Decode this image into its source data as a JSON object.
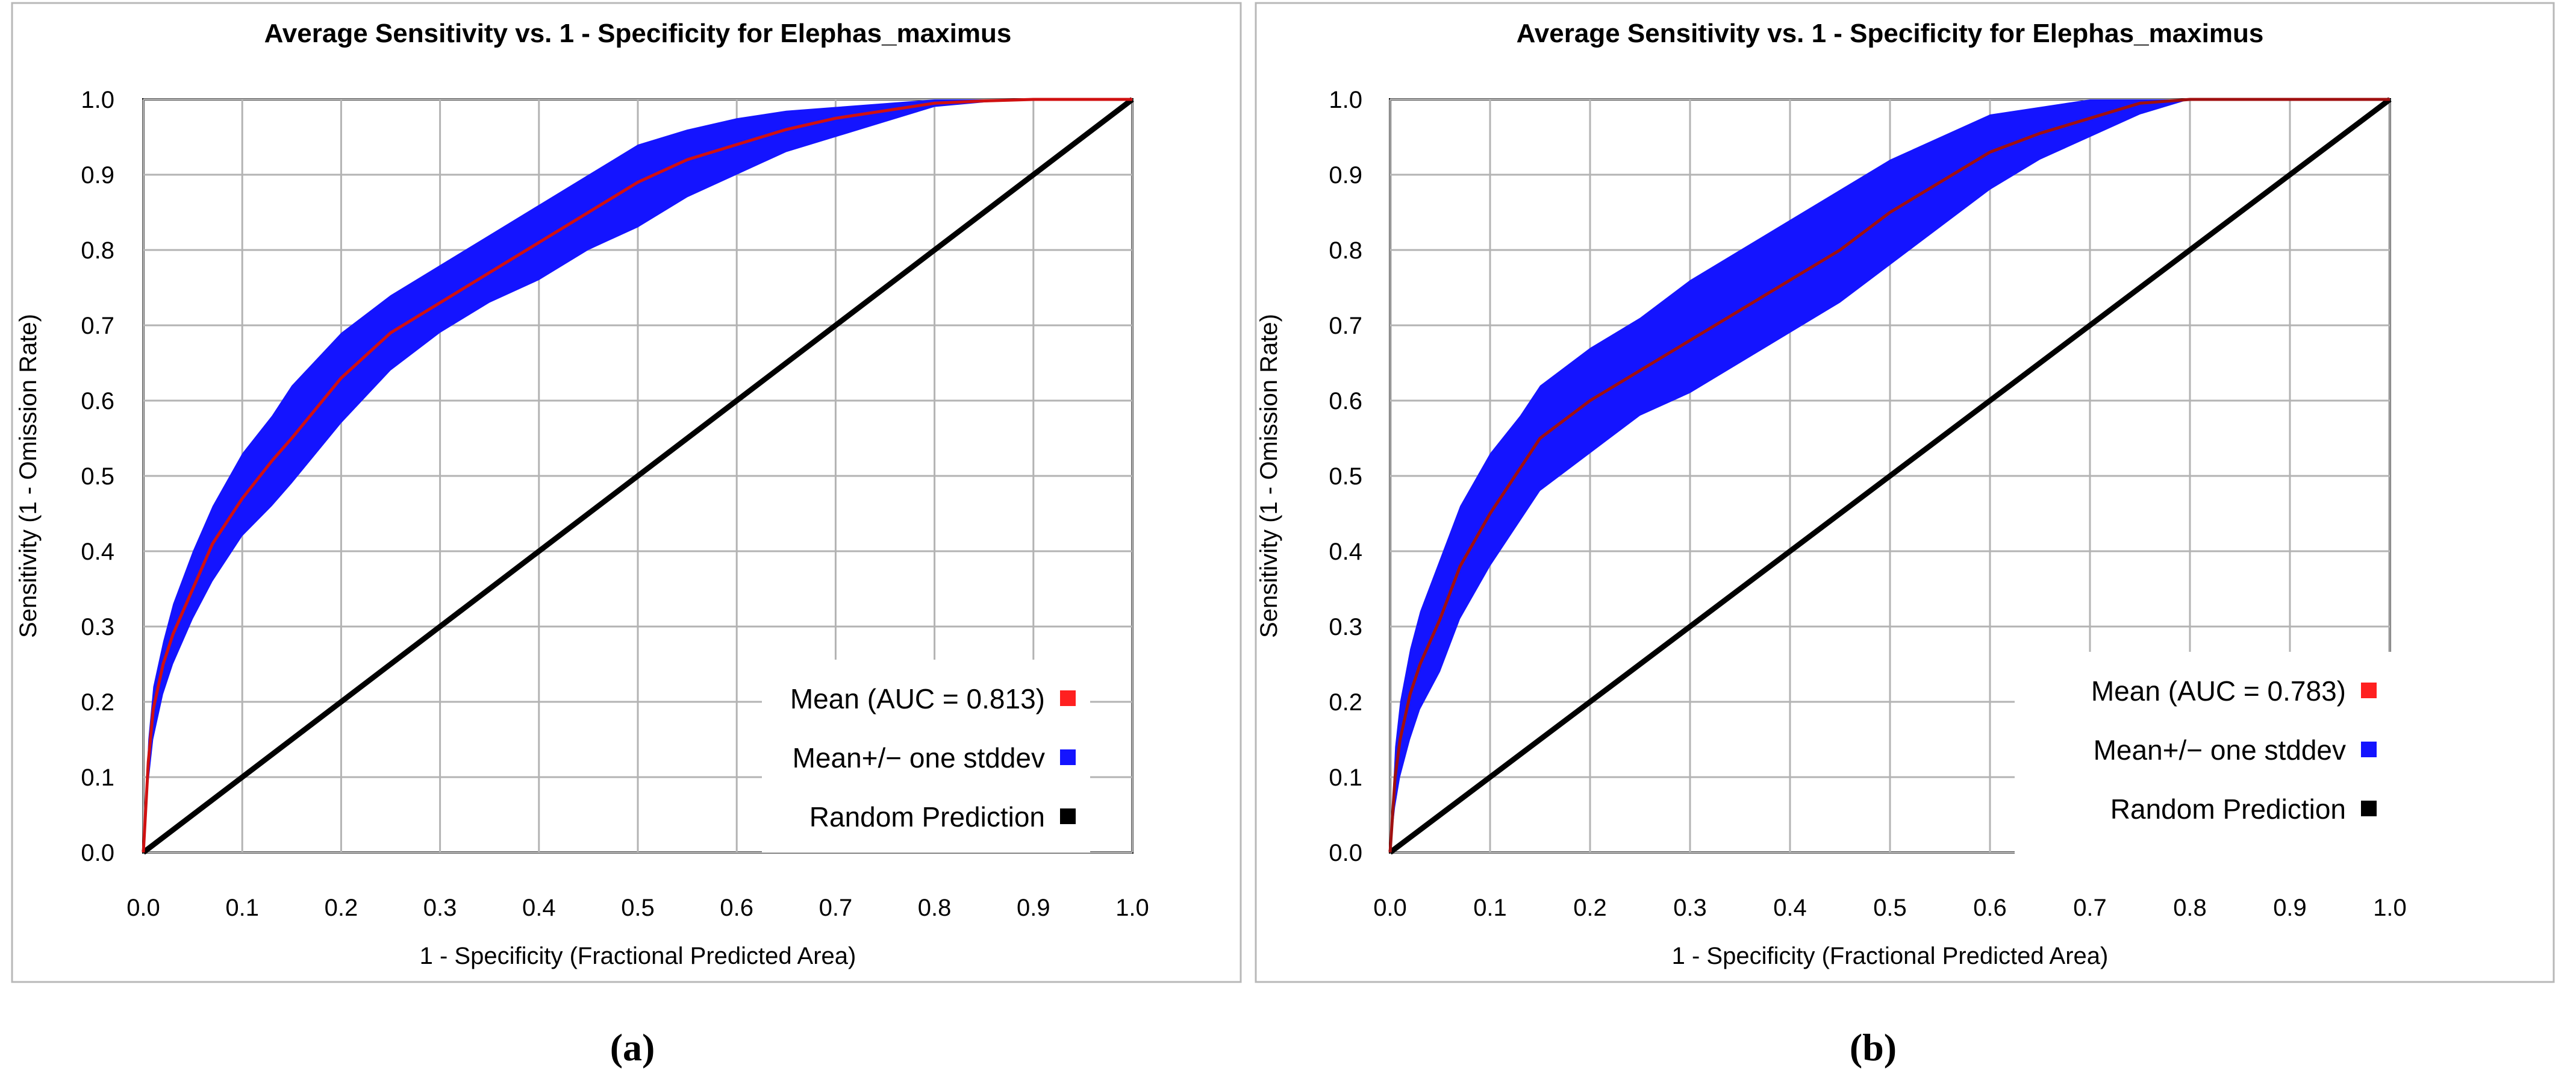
{
  "chart_data": [
    {
      "type": "line",
      "panel_label": "(a)",
      "title": "Average Sensitivity vs. 1 - Specificity for Elephas_maximus",
      "xlabel": "1 - Specificity (Fractional Predicted Area)",
      "ylabel": "Sensitivity (1 - Omission Rate)",
      "xlim": [
        0.0,
        1.0
      ],
      "ylim": [
        0.0,
        1.0
      ],
      "xticks": [
        "0.0",
        "0.1",
        "0.2",
        "0.3",
        "0.4",
        "0.5",
        "0.6",
        "0.7",
        "0.8",
        "0.9",
        "1.0"
      ],
      "yticks": [
        "0.0",
        "0.1",
        "0.2",
        "0.3",
        "0.4",
        "0.5",
        "0.6",
        "0.7",
        "0.8",
        "0.9",
        "1.0"
      ],
      "grid": true,
      "legend_position": "bottom-right",
      "legend": [
        {
          "label": "Mean (AUC = 0.813)",
          "color": "#ff2020"
        },
        {
          "label": "Mean+/− one stddev",
          "color": "#1414ff"
        },
        {
          "label": "Random Prediction",
          "color": "#000000"
        }
      ],
      "series": [
        {
          "name": "Mean",
          "color": "#d01010",
          "x": [
            0.0,
            0.005,
            0.01,
            0.02,
            0.03,
            0.05,
            0.07,
            0.1,
            0.13,
            0.15,
            0.2,
            0.25,
            0.3,
            0.35,
            0.4,
            0.45,
            0.5,
            0.55,
            0.6,
            0.65,
            0.7,
            0.75,
            0.8,
            0.85,
            0.9,
            0.95,
            1.0
          ],
          "y": [
            0.0,
            0.12,
            0.19,
            0.25,
            0.29,
            0.35,
            0.41,
            0.47,
            0.52,
            0.55,
            0.63,
            0.69,
            0.73,
            0.77,
            0.81,
            0.85,
            0.89,
            0.92,
            0.94,
            0.96,
            0.975,
            0.985,
            0.995,
            0.998,
            1.0,
            1.0,
            1.0
          ]
        },
        {
          "name": "Mean+/− one stddev",
          "color": "#1414ff",
          "x": [
            0.0,
            0.005,
            0.01,
            0.02,
            0.03,
            0.05,
            0.07,
            0.1,
            0.13,
            0.15,
            0.2,
            0.25,
            0.3,
            0.35,
            0.4,
            0.45,
            0.5,
            0.55,
            0.6,
            0.65,
            0.7,
            0.75,
            0.8,
            0.85,
            0.9,
            0.95,
            1.0
          ],
          "upper": [
            0.0,
            0.15,
            0.22,
            0.28,
            0.33,
            0.4,
            0.46,
            0.53,
            0.58,
            0.62,
            0.69,
            0.74,
            0.78,
            0.82,
            0.86,
            0.9,
            0.94,
            0.96,
            0.975,
            0.985,
            0.99,
            0.995,
            1.0,
            1.0,
            1.0,
            1.0,
            1.0
          ],
          "lower": [
            0.0,
            0.09,
            0.15,
            0.21,
            0.25,
            0.31,
            0.36,
            0.42,
            0.46,
            0.49,
            0.57,
            0.64,
            0.69,
            0.73,
            0.76,
            0.8,
            0.83,
            0.87,
            0.9,
            0.93,
            0.95,
            0.97,
            0.99,
            0.996,
            1.0,
            1.0,
            1.0
          ]
        },
        {
          "name": "Random Prediction",
          "color": "#000000",
          "x": [
            0.0,
            1.0
          ],
          "y": [
            0.0,
            1.0
          ]
        }
      ]
    },
    {
      "type": "line",
      "panel_label": "(b)",
      "title": "Average Sensitivity vs. 1 - Specificity for Elephas_maximus",
      "xlabel": "1 - Specificity (Fractional Predicted Area)",
      "ylabel": "Sensitivity (1 - Omission Rate)",
      "xlim": [
        0.0,
        1.0
      ],
      "ylim": [
        0.0,
        1.0
      ],
      "xticks": [
        "0.0",
        "0.1",
        "0.2",
        "0.3",
        "0.4",
        "0.5",
        "0.6",
        "0.7",
        "0.8",
        "0.9",
        "1.0"
      ],
      "yticks": [
        "0.0",
        "0.1",
        "0.2",
        "0.3",
        "0.4",
        "0.5",
        "0.6",
        "0.7",
        "0.8",
        "0.9",
        "1.0"
      ],
      "grid": true,
      "legend_position": "bottom-right",
      "legend": [
        {
          "label": "Mean (AUC = 0.783)",
          "color": "#ff2020"
        },
        {
          "label": "Mean+/− one stddev",
          "color": "#1414ff"
        },
        {
          "label": "Random Prediction",
          "color": "#000000"
        }
      ],
      "series": [
        {
          "name": "Mean",
          "color": "#a01010",
          "x": [
            0.0,
            0.005,
            0.01,
            0.02,
            0.03,
            0.05,
            0.07,
            0.1,
            0.13,
            0.15,
            0.2,
            0.25,
            0.3,
            0.35,
            0.4,
            0.45,
            0.5,
            0.55,
            0.6,
            0.65,
            0.7,
            0.75,
            0.8,
            0.85,
            0.9,
            0.95,
            1.0
          ],
          "y": [
            0.0,
            0.1,
            0.15,
            0.21,
            0.25,
            0.31,
            0.38,
            0.45,
            0.51,
            0.55,
            0.6,
            0.64,
            0.68,
            0.72,
            0.76,
            0.8,
            0.85,
            0.89,
            0.93,
            0.955,
            0.975,
            0.995,
            1.0,
            1.0,
            1.0,
            1.0,
            1.0
          ]
        },
        {
          "name": "Mean+/− one stddev",
          "color": "#1414ff",
          "x": [
            0.0,
            0.005,
            0.01,
            0.02,
            0.03,
            0.05,
            0.07,
            0.1,
            0.13,
            0.15,
            0.2,
            0.25,
            0.3,
            0.35,
            0.4,
            0.45,
            0.5,
            0.55,
            0.6,
            0.65,
            0.7,
            0.75,
            0.8,
            0.85,
            0.9,
            0.95,
            1.0
          ],
          "upper": [
            0.0,
            0.14,
            0.2,
            0.27,
            0.32,
            0.39,
            0.46,
            0.53,
            0.58,
            0.62,
            0.67,
            0.71,
            0.76,
            0.8,
            0.84,
            0.88,
            0.92,
            0.95,
            0.98,
            0.99,
            1.0,
            1.0,
            1.0,
            1.0,
            1.0,
            1.0,
            1.0
          ],
          "lower": [
            0.0,
            0.06,
            0.1,
            0.15,
            0.19,
            0.24,
            0.31,
            0.38,
            0.44,
            0.48,
            0.53,
            0.58,
            0.61,
            0.65,
            0.69,
            0.73,
            0.78,
            0.83,
            0.88,
            0.92,
            0.95,
            0.98,
            1.0,
            1.0,
            1.0,
            1.0,
            1.0
          ]
        },
        {
          "name": "Random Prediction",
          "color": "#000000",
          "x": [
            0.0,
            1.0
          ],
          "y": [
            0.0,
            1.0
          ]
        }
      ]
    }
  ]
}
